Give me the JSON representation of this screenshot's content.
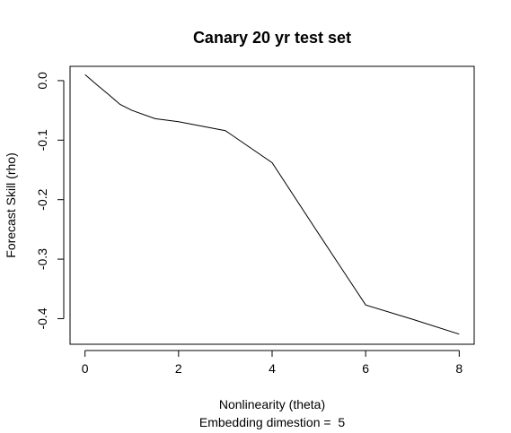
{
  "chart_data": {
    "type": "line",
    "title": "Canary 20 yr test set",
    "xlabel": "Nonlinearity (theta)",
    "xlabel2": "Embedding dimestion =  5",
    "ylabel": "Forecast Skill (rho)",
    "xlim": [
      -0.32,
      8.32
    ],
    "ylim": [
      -0.443,
      0.024
    ],
    "x_ticks": [
      0,
      2,
      4,
      6,
      8
    ],
    "x_tick_labels": [
      "0",
      "2",
      "4",
      "6",
      "8"
    ],
    "y_ticks": [
      0.0,
      -0.1,
      -0.2,
      -0.3,
      -0.4
    ],
    "y_tick_labels": [
      "0.0",
      "-0.1",
      "-0.2",
      "-0.3",
      "-0.4"
    ],
    "grid": false,
    "series": [
      {
        "x": [
          0,
          0.3,
          0.5,
          0.75,
          1,
          1.5,
          2,
          3,
          4,
          5,
          6,
          7,
          8
        ],
        "y": [
          0.01,
          -0.01,
          -0.023,
          -0.04,
          -0.05,
          -0.064,
          -0.069,
          -0.084,
          -0.138,
          -0.258,
          -0.377,
          -0.401,
          -0.426
        ],
        "color": "#000000"
      }
    ]
  }
}
